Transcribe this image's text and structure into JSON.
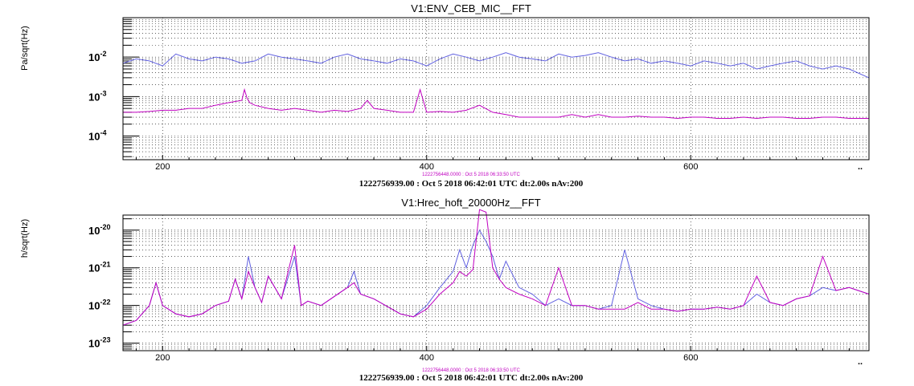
{
  "colors": {
    "frame": "#000000",
    "grid": "#000000",
    "reference_trace": "#6060e0",
    "current_trace": "#c000c0",
    "stamp": "#c000c0"
  },
  "chart_data": [
    {
      "type": "line",
      "title": "V1:ENV_CEB_MIC__FFT",
      "xlabel": "",
      "ylabel": "Pa/sqrt(Hz)",
      "xlim": [
        170,
        735
      ],
      "ylim_log10": [
        -4.6,
        -1.0
      ],
      "log_y": true,
      "grid": true,
      "x_ticks": [
        200,
        400,
        600
      ],
      "x_tick_labels": [
        "200",
        "400",
        "600"
      ],
      "y_ticks": [
        {
          "mantissa": "10",
          "exponent": "-2",
          "log10": -2
        },
        {
          "mantissa": "10",
          "exponent": "-3",
          "log10": -3
        },
        {
          "mantissa": "10",
          "exponent": "-4",
          "log10": -4
        }
      ],
      "overflow_marker": "..",
      "stamp": "1222756448.0000 : Oct  5 2018 06:33:50 UTC",
      "footer": "1222756939.00 : Oct  5 2018 06:42:01 UTC dt:2.00s nAv:200",
      "series": [
        {
          "color": "#6060e0",
          "x": [
            170,
            180,
            190,
            200,
            210,
            220,
            230,
            240,
            250,
            260,
            270,
            280,
            290,
            300,
            310,
            320,
            330,
            340,
            350,
            360,
            370,
            380,
            390,
            400,
            410,
            420,
            430,
            440,
            450,
            460,
            470,
            480,
            490,
            500,
            510,
            520,
            530,
            540,
            550,
            560,
            570,
            580,
            590,
            600,
            610,
            620,
            630,
            640,
            650,
            660,
            670,
            680,
            690,
            700,
            710,
            720,
            735
          ],
          "y": [
            0.007,
            0.009,
            0.008,
            0.006,
            0.012,
            0.009,
            0.008,
            0.01,
            0.009,
            0.007,
            0.008,
            0.012,
            0.01,
            0.009,
            0.008,
            0.007,
            0.01,
            0.012,
            0.009,
            0.008,
            0.007,
            0.009,
            0.008,
            0.006,
            0.009,
            0.012,
            0.01,
            0.008,
            0.01,
            0.013,
            0.01,
            0.009,
            0.008,
            0.012,
            0.01,
            0.011,
            0.013,
            0.01,
            0.008,
            0.009,
            0.007,
            0.008,
            0.007,
            0.006,
            0.008,
            0.007,
            0.006,
            0.007,
            0.005,
            0.006,
            0.007,
            0.008,
            0.006,
            0.005,
            0.006,
            0.005,
            0.003
          ]
        },
        {
          "color": "#c000c0",
          "x": [
            170,
            180,
            190,
            200,
            210,
            220,
            230,
            240,
            250,
            260,
            262,
            264,
            266,
            270,
            280,
            290,
            300,
            310,
            320,
            330,
            340,
            350,
            355,
            360,
            370,
            380,
            390,
            395,
            400,
            410,
            420,
            430,
            440,
            450,
            460,
            470,
            480,
            490,
            500,
            510,
            520,
            530,
            540,
            550,
            560,
            570,
            580,
            590,
            600,
            610,
            620,
            630,
            640,
            650,
            660,
            670,
            680,
            690,
            700,
            710,
            720,
            735
          ],
          "y": [
            0.0004,
            0.0004,
            0.00042,
            0.00045,
            0.00045,
            0.0005,
            0.0005,
            0.0006,
            0.0007,
            0.0008,
            0.0015,
            0.0009,
            0.0007,
            0.0006,
            0.0005,
            0.00045,
            0.0005,
            0.00045,
            0.0004,
            0.00045,
            0.00042,
            0.0005,
            0.0008,
            0.0005,
            0.00045,
            0.0004,
            0.0004,
            0.0015,
            0.0004,
            0.00042,
            0.0004,
            0.00045,
            0.0006,
            0.0004,
            0.00035,
            0.0003,
            0.0003,
            0.0003,
            0.0003,
            0.00035,
            0.0003,
            0.00035,
            0.0003,
            0.0003,
            0.00032,
            0.0003,
            0.0003,
            0.00028,
            0.0003,
            0.0003,
            0.00028,
            0.00028,
            0.0003,
            0.00028,
            0.0003,
            0.0003,
            0.00028,
            0.00028,
            0.0003,
            0.0003,
            0.00028,
            0.00028
          ]
        }
      ]
    },
    {
      "type": "line",
      "title": "V1:Hrec_hoft_20000Hz__FFT",
      "xlabel": "",
      "ylabel": "h/sqrt(Hz)",
      "xlim": [
        170,
        735
      ],
      "ylim_log10": [
        -23.2,
        -19.6
      ],
      "log_y": true,
      "grid": true,
      "x_ticks": [
        200,
        400,
        600
      ],
      "x_tick_labels": [
        "200",
        "400",
        "600"
      ],
      "y_ticks": [
        {
          "mantissa": "10",
          "exponent": "-20",
          "log10": -20
        },
        {
          "mantissa": "10",
          "exponent": "-21",
          "log10": -21
        },
        {
          "mantissa": "10",
          "exponent": "-22",
          "log10": -22
        },
        {
          "mantissa": "10",
          "exponent": "-23",
          "log10": -23
        }
      ],
      "overflow_marker": "..",
      "stamp": "1222756448.0000 : Oct  5 2018 06:33:50 UTC",
      "footer": "1222756939.00 : Oct  5 2018 06:42:01 UTC dt:2.00s nAv:200",
      "series": [
        {
          "color": "#6060e0",
          "x": [
            170,
            180,
            190,
            195,
            200,
            210,
            220,
            230,
            240,
            250,
            255,
            260,
            265,
            270,
            275,
            280,
            290,
            300,
            305,
            310,
            320,
            340,
            345,
            350,
            360,
            380,
            390,
            400,
            410,
            420,
            425,
            430,
            435,
            440,
            445,
            450,
            455,
            460,
            470,
            480,
            490,
            500,
            510,
            520,
            530,
            540,
            550,
            560,
            570,
            580,
            590,
            600,
            610,
            620,
            630,
            640,
            650,
            660,
            670,
            680,
            690,
            700,
            710,
            720,
            735
          ],
          "y": [
            3e-23,
            4e-23,
            1e-22,
            4e-22,
            1e-22,
            6e-23,
            5e-23,
            6e-23,
            1e-22,
            1.3e-22,
            5e-22,
            1.5e-22,
            2e-21,
            3e-22,
            1.2e-22,
            6e-22,
            1.5e-22,
            2e-21,
            1e-22,
            1.3e-22,
            1e-22,
            3e-22,
            8e-22,
            2e-22,
            1.5e-22,
            6e-23,
            5e-23,
            1e-22,
            3e-22,
            8e-22,
            3e-21,
            1e-21,
            4e-21,
            1e-20,
            5e-21,
            2e-21,
            5e-22,
            1.5e-21,
            3e-22,
            2e-22,
            1e-22,
            1.5e-22,
            1e-22,
            1e-22,
            8e-23,
            1e-22,
            3e-21,
            1.5e-22,
            1e-22,
            8e-23,
            7e-23,
            8e-23,
            8e-23,
            9e-23,
            8e-23,
            1e-22,
            2e-22,
            1.2e-22,
            1e-22,
            1.5e-22,
            1.8e-22,
            3e-22,
            2.5e-22,
            3e-22,
            2e-22
          ]
        },
        {
          "color": "#c000c0",
          "x": [
            170,
            180,
            190,
            195,
            200,
            210,
            220,
            230,
            240,
            250,
            255,
            260,
            265,
            270,
            275,
            280,
            290,
            300,
            305,
            310,
            320,
            340,
            345,
            350,
            360,
            380,
            390,
            400,
            410,
            420,
            425,
            430,
            435,
            440,
            445,
            450,
            455,
            460,
            470,
            480,
            490,
            500,
            510,
            520,
            530,
            540,
            550,
            560,
            570,
            580,
            590,
            600,
            610,
            620,
            630,
            640,
            650,
            660,
            670,
            680,
            690,
            700,
            710,
            720,
            735
          ],
          "y": [
            3e-23,
            4e-23,
            1e-22,
            4e-22,
            1e-22,
            6e-23,
            5e-23,
            6e-23,
            1e-22,
            1.3e-22,
            5e-22,
            1.5e-22,
            8e-22,
            3e-22,
            1.2e-22,
            6e-22,
            1.5e-22,
            4e-21,
            1e-22,
            1.3e-22,
            1e-22,
            3e-22,
            4e-22,
            2e-22,
            1.5e-22,
            6e-23,
            5e-23,
            8e-23,
            2e-22,
            4e-22,
            8e-22,
            6e-22,
            9e-22,
            3.5e-20,
            3e-20,
            1e-21,
            5e-22,
            3e-22,
            2e-22,
            1.5e-22,
            1e-22,
            1e-21,
            1e-22,
            1e-22,
            8e-23,
            8e-23,
            8e-23,
            1.2e-22,
            8e-23,
            8e-23,
            7e-23,
            8e-23,
            8e-23,
            9e-23,
            8e-23,
            1e-22,
            6e-22,
            1.2e-22,
            1e-22,
            1.5e-22,
            1.8e-22,
            2e-21,
            2.5e-22,
            3e-22,
            2e-22
          ]
        }
      ]
    }
  ]
}
